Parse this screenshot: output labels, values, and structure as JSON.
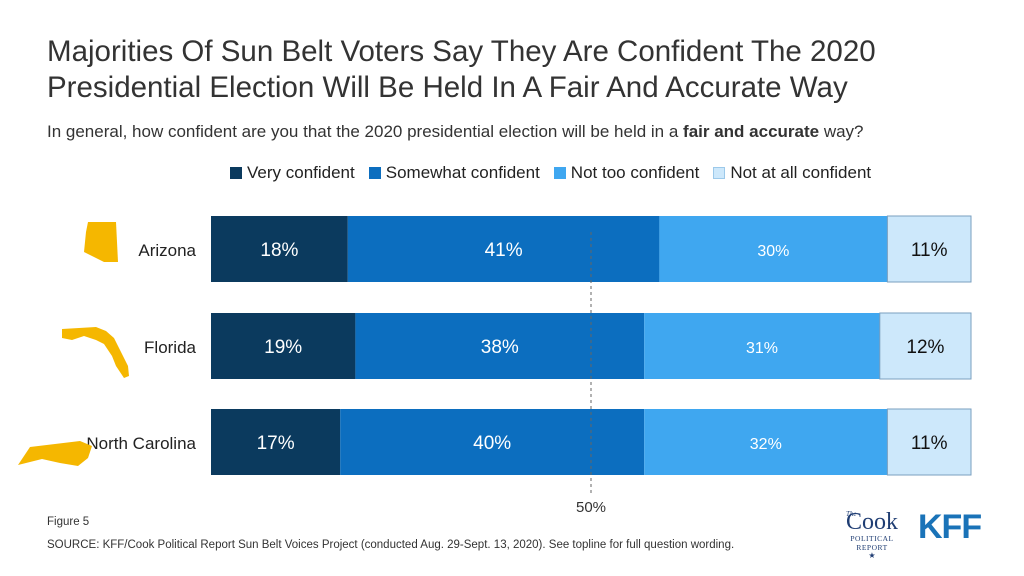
{
  "title": "Majorities Of Sun Belt Voters Say They Are Confident The 2020 Presidential Election Will Be Held In A Fair And Accurate Way",
  "subtitle": {
    "before": "In general, how confident are you that the 2020 presidential election will be held in a ",
    "bold": "fair and accurate",
    "after": " way?"
  },
  "figure_label": "Figure 5",
  "source": "SOURCE: KFF/Cook Political Report Sun Belt Voices Project (conducted Aug. 29-Sept. 13, 2020). See topline for full question wording.",
  "logos": {
    "cook_the": "The",
    "cook_name": "Cook",
    "cook_sub1": "POLITICAL",
    "cook_sub2": "REPORT",
    "kff": "KFF"
  },
  "colors": {
    "very": "#0b3a5e",
    "somewhat": "#0c6ebf",
    "not_too": "#3fa7f0",
    "not_at_all": "#cde8fb",
    "state_shape": "#f5b700"
  },
  "chart_data": {
    "type": "bar",
    "orientation": "horizontal",
    "stacked": true,
    "categories": [
      "Arizona",
      "Florida",
      "North Carolina"
    ],
    "state_icons": [
      "arizona-icon",
      "florida-icon",
      "north-carolina-icon"
    ],
    "series": [
      {
        "name": "Very confident",
        "values": [
          18,
          19,
          17
        ],
        "labels": [
          "18%",
          "19%",
          "17%"
        ],
        "color": "#0b3a5e"
      },
      {
        "name": "Somewhat confident",
        "values": [
          41,
          38,
          40
        ],
        "labels": [
          "41%",
          "38%",
          "40%"
        ],
        "color": "#0c6ebf"
      },
      {
        "name": "Not too confident",
        "values": [
          30,
          31,
          32
        ],
        "labels": [
          "30%",
          "31%",
          "32%"
        ],
        "color": "#3fa7f0"
      },
      {
        "name": "Not at all confident",
        "values": [
          11,
          12,
          11
        ],
        "labels": [
          "11%",
          "12%",
          "11%"
        ],
        "color": "#cde8fb"
      }
    ],
    "reference_line": {
      "value": 50,
      "label": "50%"
    },
    "xlim": [
      0,
      100
    ],
    "legend_position": "top"
  }
}
